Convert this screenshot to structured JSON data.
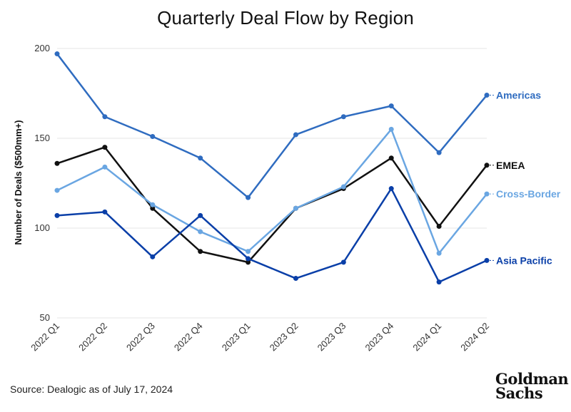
{
  "chart_data": {
    "type": "line",
    "title": "Quarterly Deal Flow by Region",
    "xlabel": "",
    "ylabel": "Number of Deals ($500mm+)",
    "ylim": [
      50,
      200
    ],
    "yticks": [
      50,
      100,
      150,
      200
    ],
    "grid": true,
    "legend": "inline-right",
    "categories": [
      "2022 Q1",
      "2022 Q2",
      "2022 Q3",
      "2022 Q4",
      "2023 Q1",
      "2023 Q2",
      "2023 Q3",
      "2023 Q4",
      "2024 Q1",
      "2024 Q2"
    ],
    "series": [
      {
        "name": "Americas",
        "color": "#2f6cc0",
        "values": [
          197,
          162,
          151,
          139,
          117,
          152,
          162,
          168,
          142,
          174
        ]
      },
      {
        "name": "EMEA",
        "color": "#111111",
        "values": [
          136,
          145,
          111,
          87,
          81,
          111,
          122,
          139,
          101,
          135
        ]
      },
      {
        "name": "Cross-Border",
        "color": "#6aa6e2",
        "values": [
          121,
          134,
          113,
          98,
          87,
          111,
          123,
          155,
          86,
          119
        ]
      },
      {
        "name": "Asia Pacific",
        "color": "#0a3fa8",
        "values": [
          107,
          109,
          84,
          107,
          83,
          72,
          81,
          122,
          70,
          82
        ]
      }
    ]
  },
  "source": "Source: Dealogic as of July 17, 2024",
  "logo": {
    "line1": "Goldman",
    "line2": "Sachs"
  }
}
